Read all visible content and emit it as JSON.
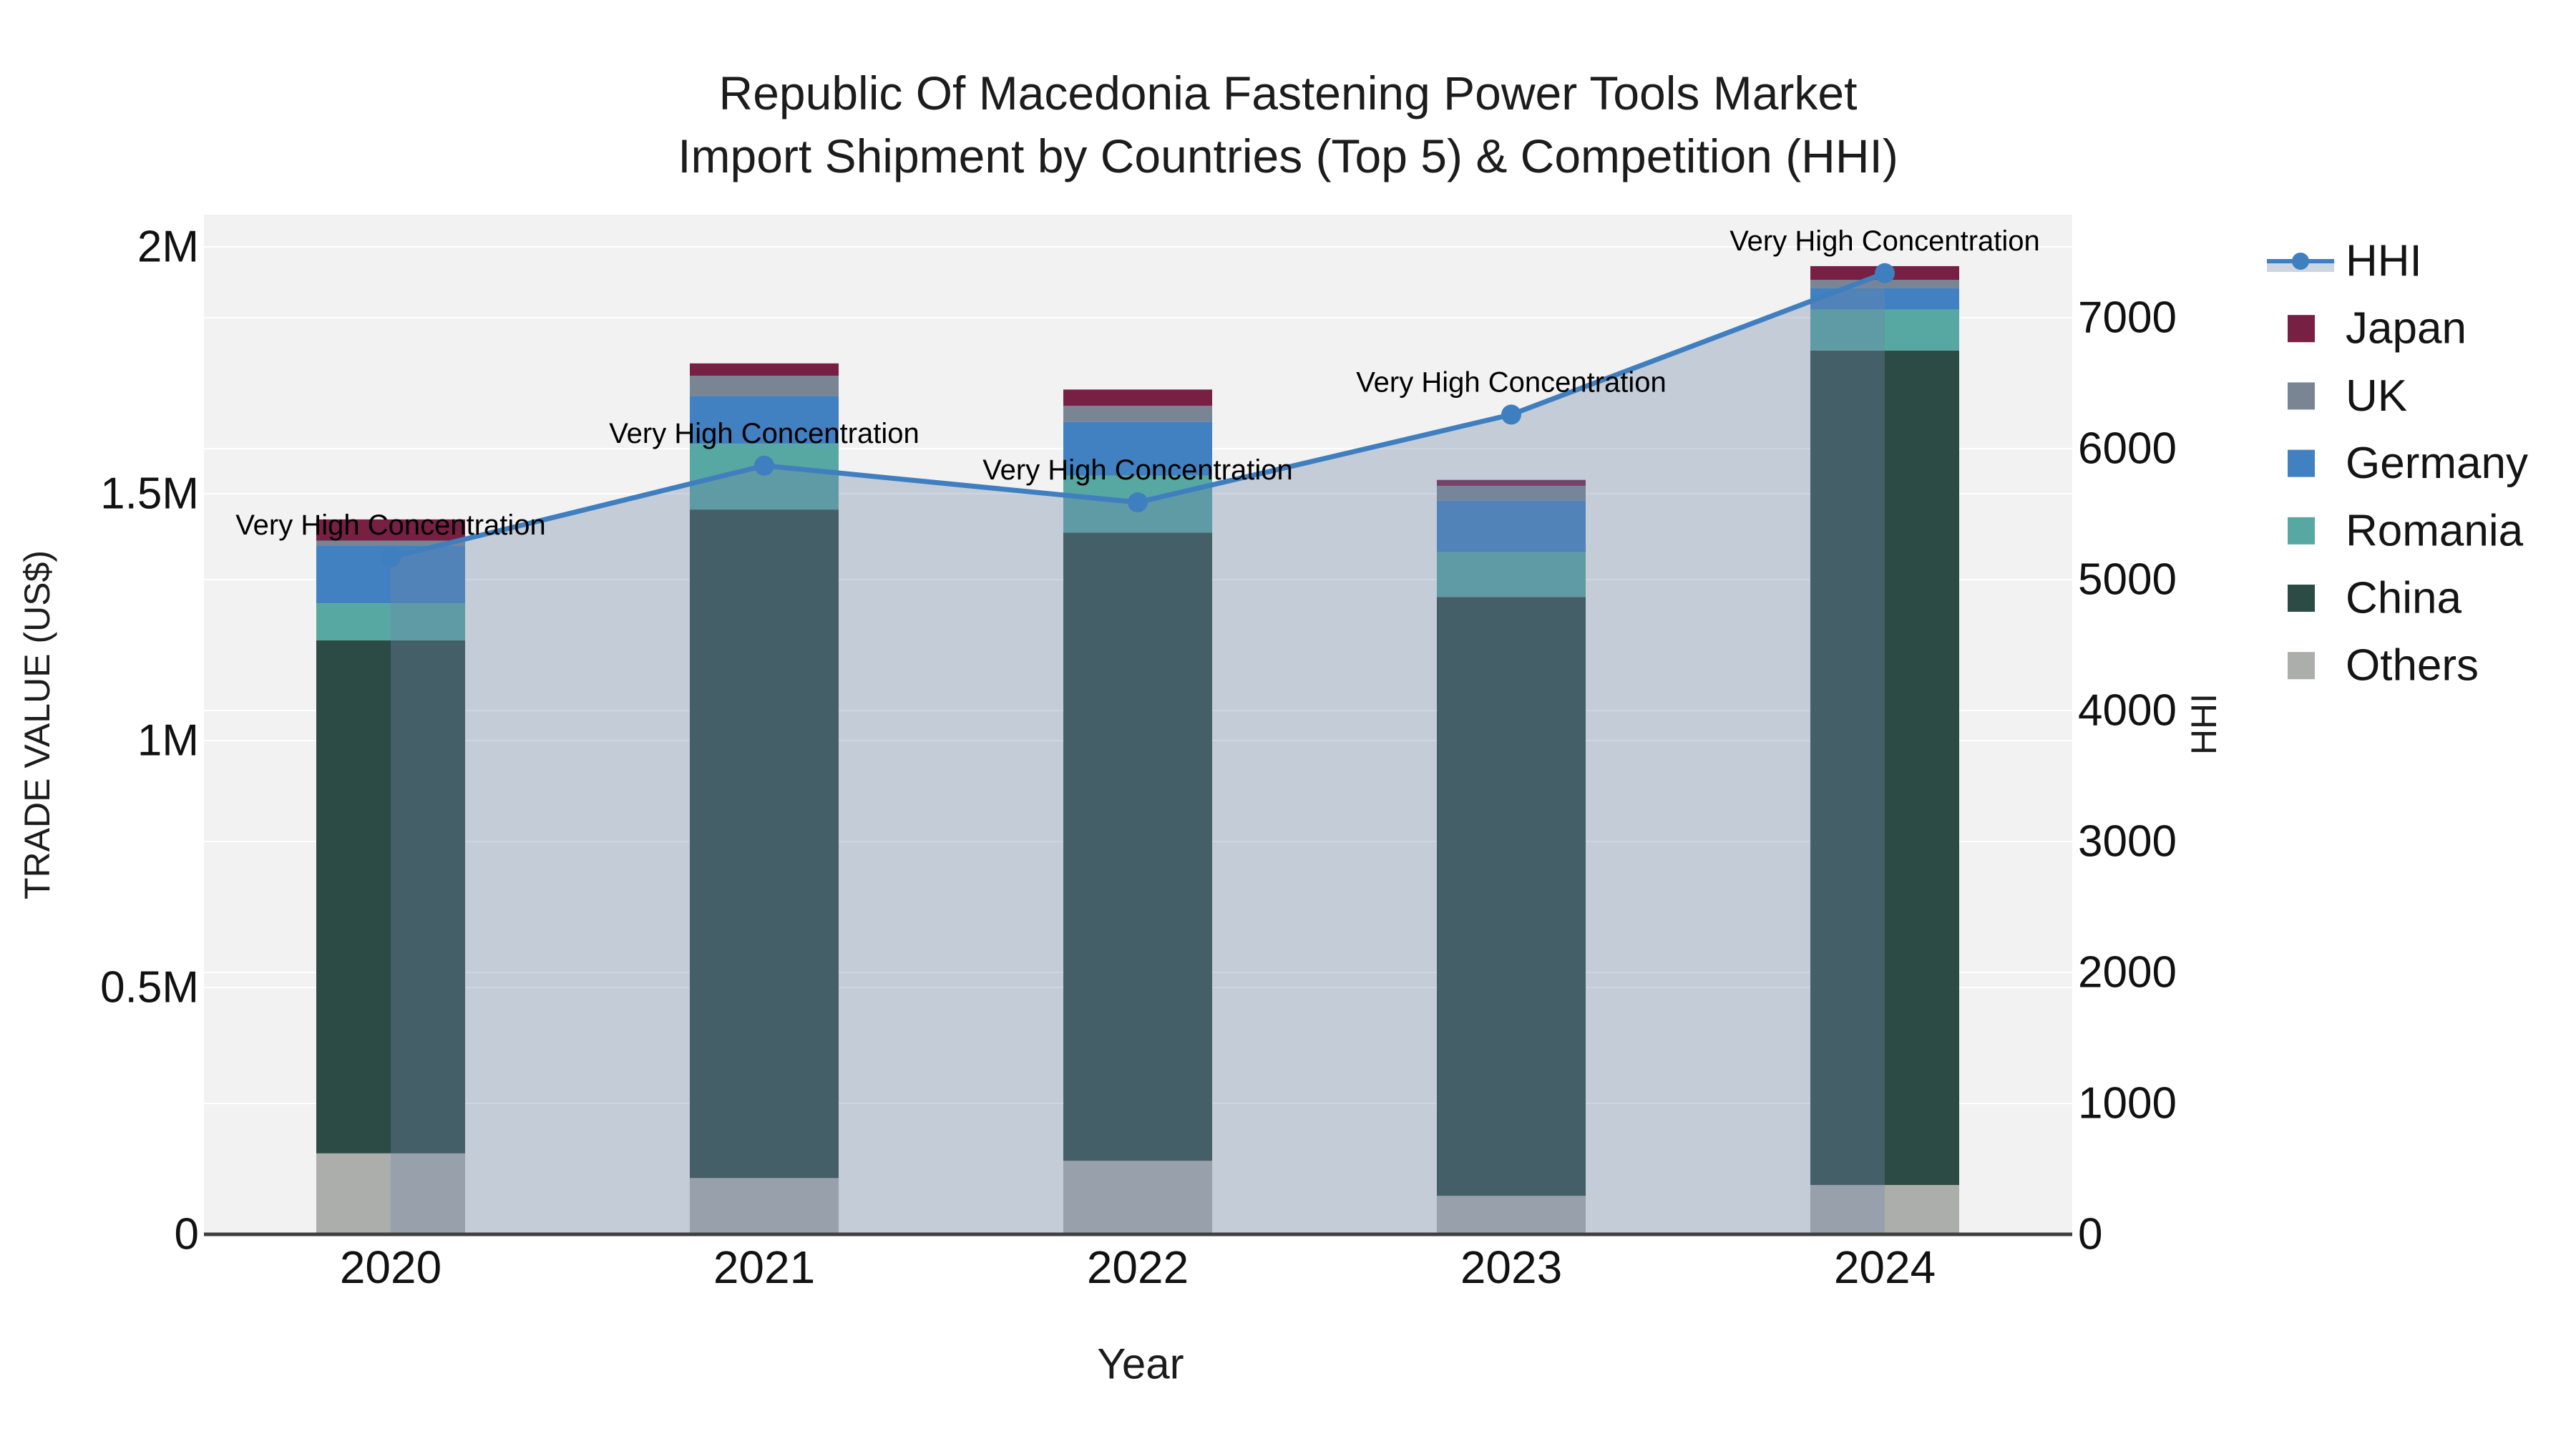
{
  "title": {
    "line1": "Republic Of Macedonia Fastening Power Tools Market",
    "line2": "Import Shipment by Countries (Top 5) & Competition (HHI)"
  },
  "axes": {
    "x": {
      "title": "Year",
      "ticks": [
        "2020",
        "2021",
        "2022",
        "2023",
        "2024"
      ]
    },
    "y_left": {
      "title": "TRADE VALUE (US$)",
      "ticks": [
        "0",
        "0.5M",
        "1M",
        "1.5M",
        "2M"
      ],
      "tick_values": [
        0,
        500000,
        1000000,
        1500000,
        2000000
      ]
    },
    "y_right": {
      "title": "HHI",
      "ticks": [
        "0",
        "1000",
        "2000",
        "3000",
        "4000",
        "5000",
        "6000",
        "7000"
      ],
      "tick_values": [
        0,
        1000,
        2000,
        3000,
        4000,
        5000,
        6000,
        7000
      ]
    }
  },
  "legend": {
    "items": [
      {
        "label": "HHI",
        "key": "hhi",
        "type": "line"
      },
      {
        "label": "Japan",
        "key": "japan",
        "type": "swatch"
      },
      {
        "label": "UK",
        "key": "uk",
        "type": "swatch"
      },
      {
        "label": "Germany",
        "key": "germany",
        "type": "swatch"
      },
      {
        "label": "Romania",
        "key": "romania",
        "type": "swatch"
      },
      {
        "label": "China",
        "key": "china",
        "type": "swatch"
      },
      {
        "label": "Others",
        "key": "others",
        "type": "swatch"
      }
    ]
  },
  "colors": {
    "japan": "#782044",
    "uk": "#7a8593",
    "germany": "#4181c1",
    "romania": "#57a7a2",
    "china": "#2d4b45",
    "others": "#acaeac",
    "hhi_line": "#3f7fbf",
    "hhi_area": "rgba(113,134,170,0.35)",
    "plot_bg": "#f2f2f2",
    "grid": "#ffffff",
    "axis_line": "#3f3f3f",
    "tick_text": "#111111",
    "annotation_text": "#000000"
  },
  "chart_data": {
    "type": "stacked-bar+line",
    "title": "Republic Of Macedonia Fastening Power Tools Market Import Shipment by Countries (Top 5) & Competition (HHI)",
    "xlabel": "Year",
    "ylabel_left": "TRADE VALUE (US$)",
    "ylabel_right": "HHI",
    "categories": [
      "2020",
      "2021",
      "2022",
      "2023",
      "2024"
    ],
    "unit": "US$",
    "stack_order_bottom_to_top": [
      "Others",
      "China",
      "Romania",
      "Germany",
      "UK",
      "Japan"
    ],
    "series": [
      {
        "name": "Japan",
        "key": "japan",
        "values": [
          43000,
          25000,
          33000,
          12000,
          28000
        ]
      },
      {
        "name": "UK",
        "key": "uk",
        "values": [
          10000,
          41000,
          32000,
          30000,
          17000
        ]
      },
      {
        "name": "Germany",
        "key": "germany",
        "values": [
          117000,
          97000,
          109000,
          104000,
          43000
        ]
      },
      {
        "name": "Romania",
        "key": "romania",
        "values": [
          75000,
          133000,
          116000,
          91000,
          83000
        ]
      },
      {
        "name": "China",
        "key": "china",
        "values": [
          1039000,
          1354000,
          1272000,
          1213000,
          1690000
        ]
      },
      {
        "name": "Others",
        "key": "others",
        "values": [
          164000,
          114000,
          149000,
          78000,
          100000
        ]
      }
    ],
    "bar_totals": [
      1448000,
      1764000,
      1711000,
      1528000,
      1961000
    ],
    "line_series": {
      "name": "HHI",
      "key": "hhi",
      "axis": "right",
      "values": [
        5170,
        5870,
        5590,
        6260,
        7340
      ]
    },
    "annotations": [
      "Very High Concentration",
      "Very High Concentration",
      "Very High Concentration",
      "Very High Concentration",
      "Very High Concentration"
    ],
    "ylim_left": [
      0,
      2070000
    ],
    "ylim_right": [
      0,
      7490
    ],
    "grid": true,
    "legend_position": "right"
  }
}
